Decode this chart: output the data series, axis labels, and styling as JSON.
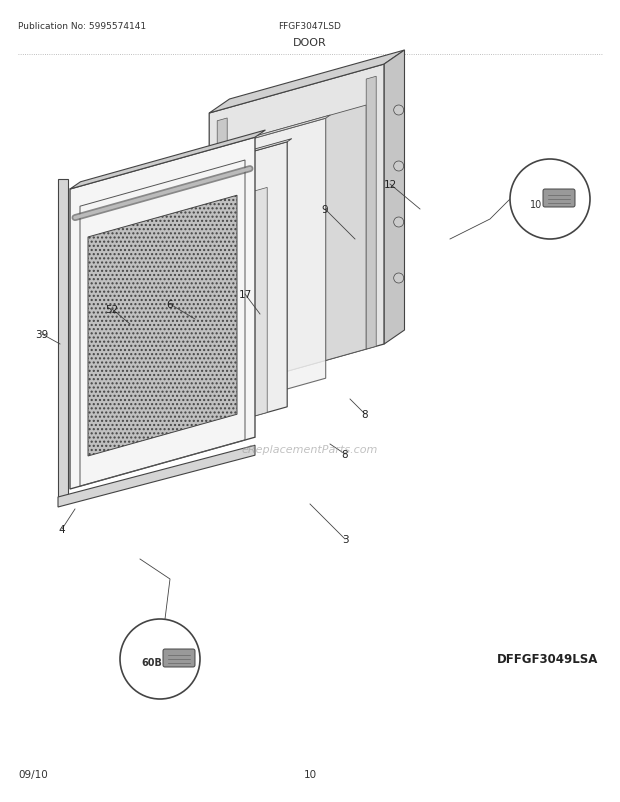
{
  "pub_no": "Publication No: 5995574141",
  "model": "FFGF3047LSD",
  "section": "DOOR",
  "diagram_id": "DFFGF3049LSA",
  "date": "09/10",
  "page": "10",
  "bg_color": "#ffffff",
  "text_color": "#333333",
  "watermark": "eReplacementParts.com",
  "line_color": "#444444",
  "panel_fc": "#f0f0f0",
  "panel_ec": "#444444"
}
